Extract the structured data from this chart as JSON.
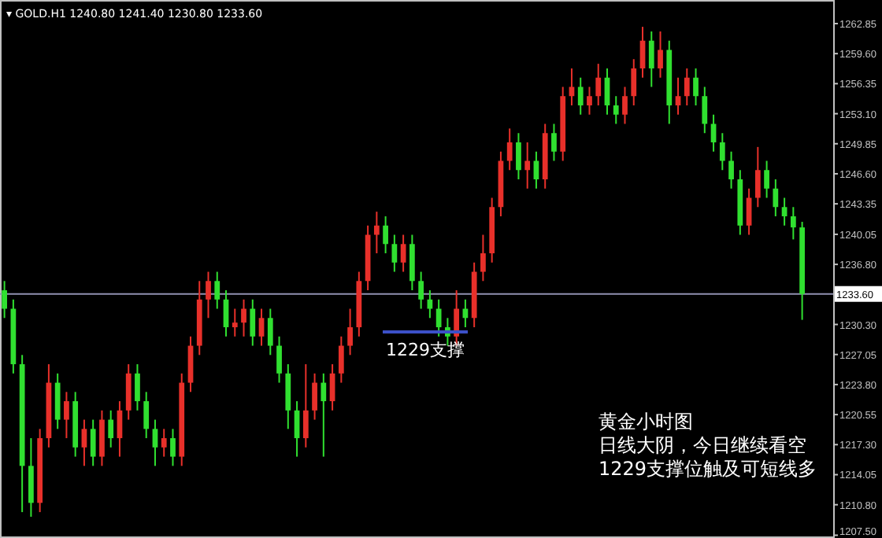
{
  "chart_data": {
    "type": "candlestick",
    "categories": [
      null,
      null,
      null,
      null,
      null,
      null,
      null,
      null,
      null,
      null,
      null,
      null,
      null,
      null,
      null,
      null,
      null,
      null,
      null,
      null,
      null,
      null,
      null,
      null,
      null,
      null,
      null,
      null,
      null,
      null,
      null,
      null,
      null,
      null,
      null,
      null,
      null,
      null,
      null,
      null,
      null,
      null,
      null,
      null,
      null,
      null,
      null,
      null,
      null,
      null,
      null,
      null,
      null,
      null,
      null,
      null,
      null,
      null,
      null,
      null,
      null,
      null,
      null,
      null,
      null,
      null,
      null,
      null,
      null,
      null,
      null,
      null,
      null,
      null,
      null,
      null,
      null,
      null,
      null,
      null,
      null,
      null,
      null,
      null,
      null,
      null,
      null,
      null,
      null,
      null,
      null
    ],
    "ohlc": [
      [
        1234,
        1235,
        1231,
        1232
      ],
      [
        1232,
        1233,
        1225,
        1226
      ],
      [
        1226,
        1227,
        1210,
        1215
      ],
      [
        1215,
        1218,
        1209.5,
        1211
      ],
      [
        1211,
        1219,
        1210,
        1218
      ],
      [
        1218,
        1226,
        1217,
        1224
      ],
      [
        1224,
        1225,
        1219,
        1220
      ],
      [
        1220,
        1223,
        1218,
        1222
      ],
      [
        1222,
        1223,
        1216,
        1217
      ],
      [
        1217,
        1220,
        1215,
        1219
      ],
      [
        1219,
        1220,
        1215,
        1216
      ],
      [
        1216,
        1221,
        1215,
        1220
      ],
      [
        1220,
        1221,
        1217,
        1218
      ],
      [
        1218,
        1222,
        1216,
        1221
      ],
      [
        1221,
        1226,
        1220,
        1225
      ],
      [
        1225,
        1226,
        1221,
        1222
      ],
      [
        1222,
        1223,
        1218,
        1219
      ],
      [
        1219,
        1220,
        1215,
        1217
      ],
      [
        1217,
        1219,
        1216,
        1218
      ],
      [
        1218,
        1219,
        1215,
        1216
      ],
      [
        1216,
        1225,
        1215,
        1224
      ],
      [
        1224,
        1229,
        1223,
        1228
      ],
      [
        1228,
        1235,
        1227,
        1233
      ],
      [
        1233,
        1236,
        1231,
        1235
      ],
      [
        1235,
        1236,
        1232,
        1233
      ],
      [
        1233,
        1234,
        1229,
        1230
      ],
      [
        1230,
        1232,
        1229,
        1230.5
      ],
      [
        1230.5,
        1233,
        1229,
        1232
      ],
      [
        1232,
        1233,
        1228,
        1229
      ],
      [
        1229,
        1232,
        1228,
        1231
      ],
      [
        1231,
        1232,
        1227,
        1228
      ],
      [
        1228,
        1229,
        1224,
        1225
      ],
      [
        1225,
        1226,
        1219,
        1221
      ],
      [
        1221,
        1222,
        1216,
        1218
      ],
      [
        1218,
        1226,
        1217,
        1221
      ],
      [
        1221,
        1225,
        1220,
        1224
      ],
      [
        1224,
        1225,
        1216,
        1222
      ],
      [
        1222,
        1226,
        1221,
        1225
      ],
      [
        1225,
        1229,
        1224,
        1228
      ],
      [
        1228,
        1232,
        1227,
        1230
      ],
      [
        1230,
        1236,
        1229,
        1235
      ],
      [
        1235,
        1241,
        1234,
        1240
      ],
      [
        1240,
        1242.5,
        1238,
        1241
      ],
      [
        1241,
        1242,
        1238,
        1239
      ],
      [
        1239,
        1240,
        1236,
        1237
      ],
      [
        1237,
        1240,
        1236,
        1239
      ],
      [
        1239,
        1240,
        1234,
        1235
      ],
      [
        1235,
        1236,
        1232,
        1233
      ],
      [
        1233,
        1234,
        1231,
        1232
      ],
      [
        1232,
        1233,
        1229,
        1230
      ],
      [
        1230,
        1231,
        1228,
        1229
      ],
      [
        1229,
        1234,
        1228,
        1232
      ],
      [
        1232,
        1233,
        1230,
        1231
      ],
      [
        1231,
        1237,
        1230,
        1236
      ],
      [
        1236,
        1240,
        1235,
        1238
      ],
      [
        1238,
        1244,
        1237,
        1243
      ],
      [
        1243,
        1249,
        1242,
        1248
      ],
      [
        1248,
        1251.5,
        1247,
        1250
      ],
      [
        1250,
        1251,
        1246,
        1247
      ],
      [
        1247,
        1250,
        1245,
        1248
      ],
      [
        1248,
        1249,
        1245,
        1246
      ],
      [
        1246,
        1252,
        1245,
        1251
      ],
      [
        1251,
        1252,
        1248,
        1249
      ],
      [
        1249,
        1256,
        1248,
        1255
      ],
      [
        1255,
        1258,
        1254,
        1256
      ],
      [
        1256,
        1257,
        1253,
        1254
      ],
      [
        1254,
        1256,
        1253,
        1255
      ],
      [
        1255,
        1258.5,
        1254,
        1257
      ],
      [
        1257,
        1258,
        1253,
        1254
      ],
      [
        1254,
        1255,
        1252,
        1253
      ],
      [
        1253,
        1256,
        1252,
        1255
      ],
      [
        1255,
        1259,
        1254,
        1258
      ],
      [
        1258,
        1262.5,
        1257,
        1261
      ],
      [
        1261,
        1262,
        1256,
        1258
      ],
      [
        1258,
        1262,
        1257,
        1260
      ],
      [
        1260,
        1261,
        1252,
        1254
      ],
      [
        1254,
        1257,
        1253,
        1255
      ],
      [
        1255,
        1258,
        1254,
        1257
      ],
      [
        1257,
        1258,
        1254,
        1255
      ],
      [
        1255,
        1256,
        1251,
        1252
      ],
      [
        1252,
        1253,
        1249,
        1250
      ],
      [
        1250,
        1251,
        1247,
        1248
      ],
      [
        1248,
        1249,
        1245,
        1246
      ],
      [
        1246,
        1247,
        1240,
        1241
      ],
      [
        1241,
        1245,
        1240,
        1244
      ],
      [
        1244,
        1249.5,
        1243,
        1247
      ],
      [
        1247,
        1248,
        1244,
        1245
      ],
      [
        1245,
        1246,
        1242,
        1243
      ],
      [
        1243,
        1244,
        1241,
        1242
      ],
      [
        1242,
        1243,
        1239.5,
        1240.8
      ],
      [
        1240.8,
        1241.4,
        1230.8,
        1233.6
      ]
    ],
    "colors": [
      "#30e030",
      "#30e030",
      "#30e030",
      "#30e030",
      "#e8302a",
      "#e8302a",
      "#30e030",
      "#e8302a",
      "#30e030",
      "#e8302a",
      "#30e030",
      "#e8302a",
      "#30e030",
      "#e8302a",
      "#e8302a",
      "#30e030",
      "#30e030",
      "#30e030",
      "#e8302a",
      "#30e030",
      "#e8302a",
      "#e8302a",
      "#e8302a",
      "#e8302a",
      "#30e030",
      "#30e030",
      "#e8302a",
      "#e8302a",
      "#30e030",
      "#e8302a",
      "#30e030",
      "#30e030",
      "#30e030",
      "#30e030",
      "#e8302a",
      "#e8302a",
      "#30e030",
      "#e8302a",
      "#e8302a",
      "#e8302a",
      "#e8302a",
      "#e8302a",
      "#e8302a",
      "#30e030",
      "#30e030",
      "#e8302a",
      "#30e030",
      "#30e030",
      "#30e030",
      "#30e030",
      "#30e030",
      "#e8302a",
      "#30e030",
      "#e8302a",
      "#e8302a",
      "#e8302a",
      "#e8302a",
      "#e8302a",
      "#30e030",
      "#e8302a",
      "#30e030",
      "#e8302a",
      "#30e030",
      "#e8302a",
      "#e8302a",
      "#30e030",
      "#e8302a",
      "#e8302a",
      "#30e030",
      "#30e030",
      "#e8302a",
      "#e8302a",
      "#e8302a",
      "#30e030",
      "#e8302a",
      "#30e030",
      "#e8302a",
      "#e8302a",
      "#30e030",
      "#30e030",
      "#30e030",
      "#30e030",
      "#30e030",
      "#30e030",
      "#e8302a",
      "#e8302a",
      "#30e030",
      "#30e030",
      "#30e030",
      "#30e030",
      "#30e030"
    ],
    "ylim": [
      1207.2,
      1265.4
    ],
    "yticks": [
      {
        "value": 1262.85,
        "label": "1262.85"
      },
      {
        "value": 1259.6,
        "label": "1259.60"
      },
      {
        "value": 1256.35,
        "label": "1256.35"
      },
      {
        "value": 1253.1,
        "label": "1253.10"
      },
      {
        "value": 1249.85,
        "label": "1249.85"
      },
      {
        "value": 1246.6,
        "label": "1246.60"
      },
      {
        "value": 1243.35,
        "label": "1243.35"
      },
      {
        "value": 1240.05,
        "label": "1240.05"
      },
      {
        "value": 1236.8,
        "label": "1236.80"
      },
      {
        "value": 1230.3,
        "label": "1230.30"
      },
      {
        "value": 1227.05,
        "label": "1227.05"
      },
      {
        "value": 1223.8,
        "label": "1223.80"
      },
      {
        "value": 1220.55,
        "label": "1220.55"
      },
      {
        "value": 1217.3,
        "label": "1217.30"
      },
      {
        "value": 1214.05,
        "label": "1214.05"
      },
      {
        "value": 1210.8,
        "label": "1210.80"
      },
      {
        "value": 1207.5,
        "label": "1207.50"
      }
    ],
    "tick_labels": "y",
    "grid": false,
    "ref_lines": [
      {
        "axis": "y",
        "value": 1233.6,
        "label": "1233.60",
        "color": "#9090b0"
      }
    ],
    "annotations": [
      "▾ GOLD.H1  1240.80 1241.40 1230.80 1233.60",
      "1229支撑",
      "黄金小时图",
      "日线大阴，今日继续看空",
      "1229支撑位触及可短线多"
    ]
  }
}
